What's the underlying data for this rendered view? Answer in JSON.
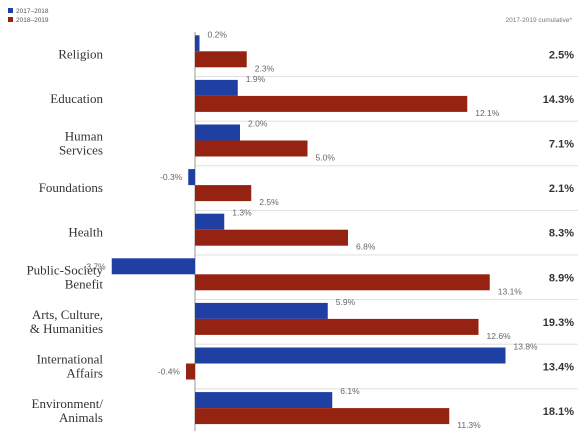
{
  "chart_data": {
    "type": "bar",
    "orientation": "horizontal",
    "categories": [
      [
        "Religion"
      ],
      [
        "Education"
      ],
      [
        "Human",
        "Services"
      ],
      [
        "Foundations"
      ],
      [
        "Health"
      ],
      [
        "Public-Society",
        "Benefit"
      ],
      [
        "Arts, Culture,",
        "& Humanities"
      ],
      [
        "International",
        "Affairs"
      ],
      [
        "Environment/",
        "Animals"
      ]
    ],
    "series": [
      {
        "name": "2017–2018",
        "color": "#1f3fa3",
        "values": [
          0.2,
          1.9,
          2.0,
          -0.3,
          1.3,
          -3.7,
          5.9,
          13.8,
          6.1
        ],
        "labels": [
          "0.2%",
          "1.9%",
          "2.0%",
          "-0.3%",
          "1.3%",
          "-3.7%",
          "5.9%",
          "13.8%",
          "6.1%"
        ]
      },
      {
        "name": "2018–2019",
        "color": "#962312",
        "values": [
          2.3,
          12.1,
          5.0,
          2.5,
          6.8,
          13.1,
          12.6,
          -0.4,
          11.3
        ],
        "labels": [
          "2.3%",
          "12.1%",
          "5.0%",
          "2.5%",
          "6.8%",
          "13.1%",
          "12.6%",
          "-0.4%",
          "11.3%"
        ]
      }
    ],
    "cumulative": {
      "header": "2017-2019 cumulative*",
      "values": [
        2.5,
        14.3,
        7.1,
        2.1,
        8.3,
        8.9,
        19.3,
        13.4,
        18.1
      ],
      "labels": [
        "2.5%",
        "14.3%",
        "7.1%",
        "2.1%",
        "8.3%",
        "8.9%",
        "19.3%",
        "13.4%",
        "18.1%"
      ]
    },
    "xlim": [
      -4,
      14
    ],
    "grid": false,
    "legend_position": "top-left"
  }
}
